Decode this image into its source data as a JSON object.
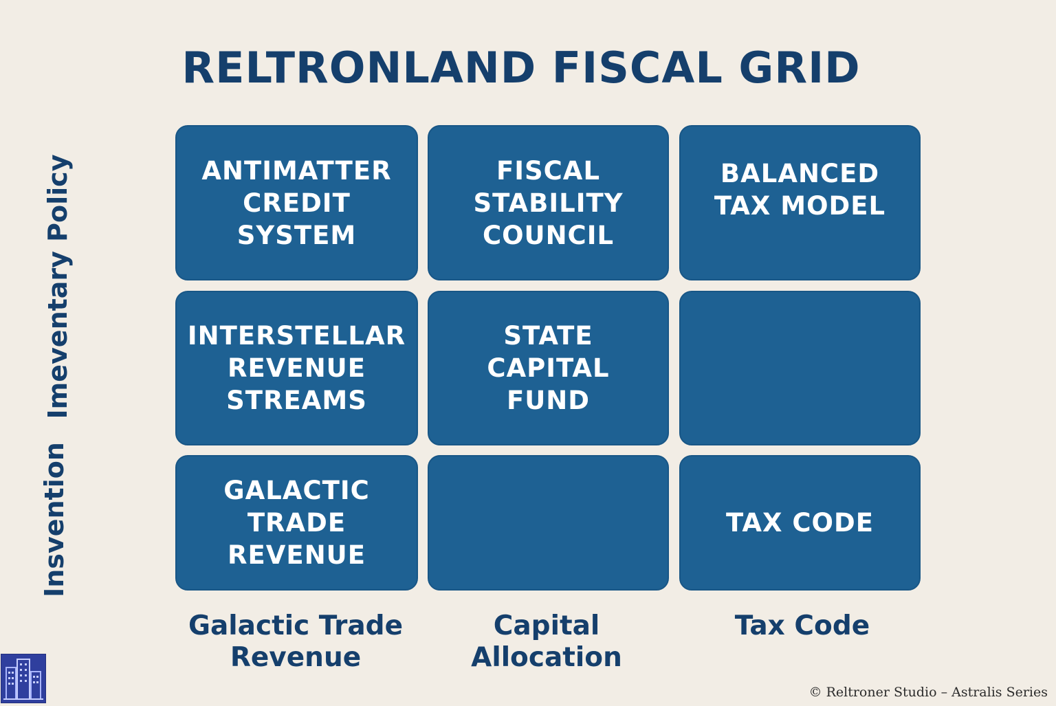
{
  "title": "RELTRONLAND FISCAL GRID",
  "row_labels": [
    "Imeventary Policy",
    "Insvention"
  ],
  "column_labels": [
    "Galactic Trade\nRevenue",
    "Capital\nAllocation",
    "Tax Code"
  ],
  "grid": {
    "tiles": [
      {
        "row": 1,
        "col": 1,
        "text": "ANTIMATTER\nCREDIT\nSYSTEM"
      },
      {
        "row": 1,
        "col": 2,
        "text": "FISCAL\nSTABILITY\nCOUNCIL"
      },
      {
        "row": 1,
        "col": 3,
        "text": "BALANCED\nTAX MODEL"
      },
      {
        "row": 2,
        "col": 1,
        "text": "INTERSTELLAR\nREVENUE\nSTREAMS"
      },
      {
        "row": 2,
        "col": 2,
        "text": "STATE\nCAPITAL\nFUND"
      },
      {
        "row": 2,
        "col": 3,
        "text": ""
      },
      {
        "row": 3,
        "col": 1,
        "text": "GALACTIC\nTRADE\nREVENUE"
      },
      {
        "row": 3,
        "col": 2,
        "text": ""
      },
      {
        "row": 3,
        "col": 3,
        "text": "TAX CODE"
      }
    ]
  },
  "footer": {
    "copyright": "© Reltroner Studio – Astralis Series",
    "logo_icon": "city-buildings-icon"
  },
  "colors": {
    "background": "#f2ede5",
    "tile": "#1e6193",
    "text_dark": "#153f6c",
    "tile_text": "#ffffff"
  }
}
